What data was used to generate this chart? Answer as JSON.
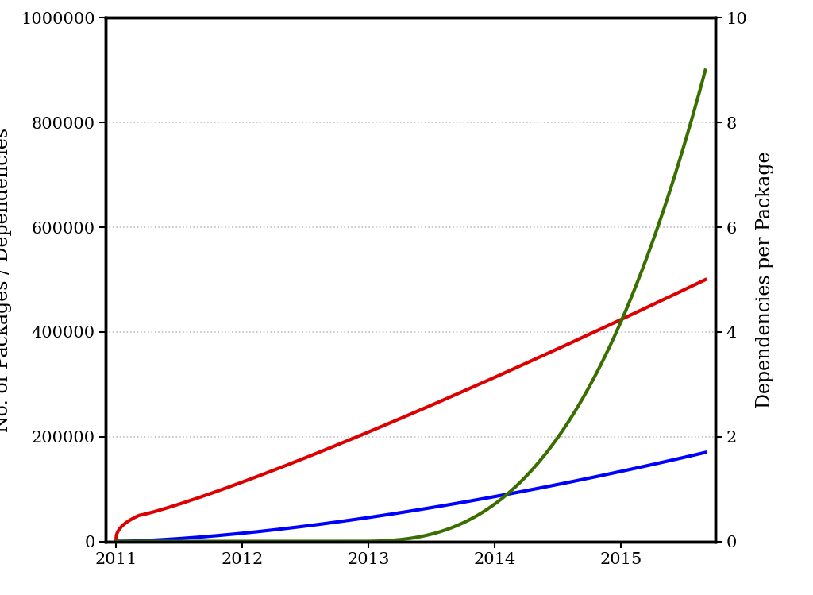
{
  "title": "",
  "xlabel": "",
  "ylabel_left": "No. of Packages / Dependencies",
  "ylabel_right": "Dependencies per Package",
  "xlim": [
    2010.92,
    2015.75
  ],
  "ylim_left": [
    0,
    1000000
  ],
  "ylim_right": [
    0,
    10
  ],
  "yticks_left": [
    0,
    200000,
    400000,
    600000,
    800000,
    1000000
  ],
  "ytick_labels_left": [
    "0",
    "200000",
    "400000",
    "600000",
    "800000",
    "1000000"
  ],
  "yticks_right": [
    0,
    2,
    4,
    6,
    8,
    10
  ],
  "xticks": [
    2011,
    2012,
    2013,
    2014,
    2015
  ],
  "grid_color": "#000000",
  "grid_alpha": 0.25,
  "blue_color": "#0000ff",
  "red_color": "#dd0000",
  "green_color": "#3a6e00",
  "line_width": 3.0,
  "background_color": "#ffffff",
  "spine_linewidth": 2.5,
  "font_size": 15,
  "axis_label_fontsize": 17
}
